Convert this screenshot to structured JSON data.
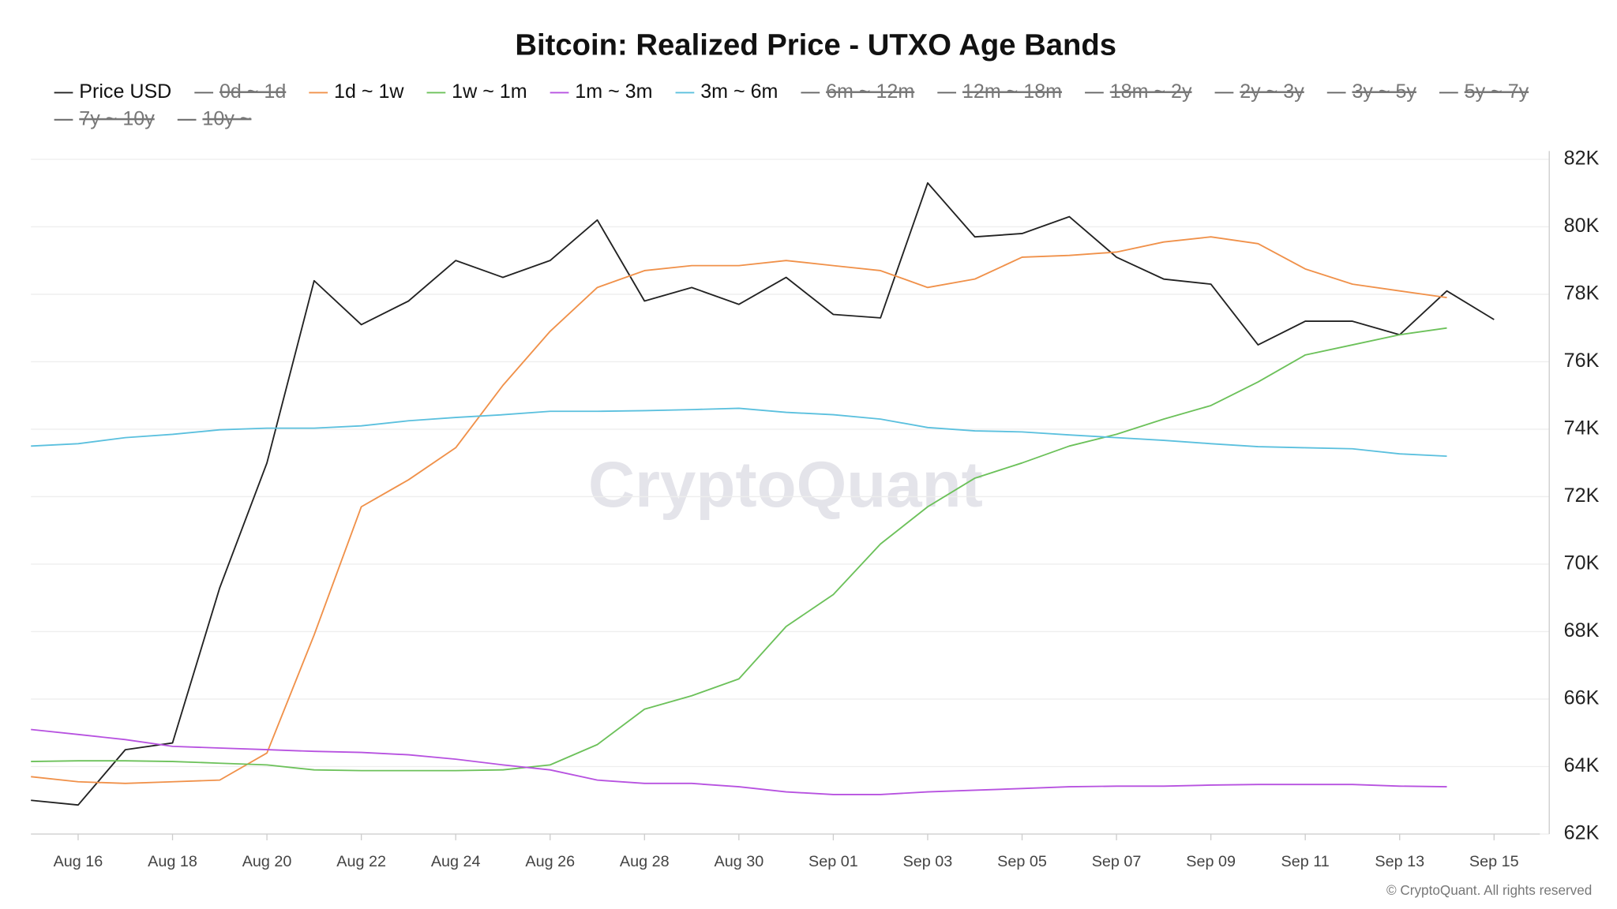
{
  "chart_data": {
    "type": "line",
    "title": "Bitcoin: Realized Price - UTXO Age Bands",
    "watermark": "CryptoQuant",
    "credit": "© CryptoQuant. All rights reserved",
    "categories": [
      null,
      "Aug 16",
      null,
      "Aug 18",
      null,
      "Aug 20",
      null,
      "Aug 22",
      null,
      "Aug 24",
      null,
      "Aug 26",
      null,
      "Aug 28",
      null,
      "Aug 30",
      null,
      "Sep 01",
      null,
      "Sep 03",
      null,
      "Sep 05",
      null,
      "Sep 07",
      null,
      "Sep 09",
      null,
      "Sep 11",
      null,
      "Sep 13",
      null,
      "Sep 15"
    ],
    "ylim": [
      62000,
      82000
    ],
    "yticks": [
      {
        "value": 62000,
        "label": "62K"
      },
      {
        "value": 64000,
        "label": "64K"
      },
      {
        "value": 66000,
        "label": "66K"
      },
      {
        "value": 68000,
        "label": "68K"
      },
      {
        "value": 70000,
        "label": "70K"
      },
      {
        "value": 72000,
        "label": "72K"
      },
      {
        "value": 74000,
        "label": "74K"
      },
      {
        "value": 76000,
        "label": "76K"
      },
      {
        "value": 78000,
        "label": "78K"
      },
      {
        "value": 80000,
        "label": "80K"
      },
      {
        "value": 82000,
        "label": "82K"
      }
    ],
    "grid": true,
    "series": [
      {
        "name": "Price USD",
        "color": "#222222",
        "values": [
          63000,
          62860,
          64500,
          64700,
          69300,
          73000,
          78400,
          77100,
          77800,
          79000,
          78500,
          79000,
          80200,
          77800,
          78200,
          77700,
          78500,
          77400,
          77300,
          81300,
          79700,
          79800,
          80300,
          79100,
          78450,
          78300,
          76500,
          77200,
          77200,
          76800,
          78100,
          77250
        ]
      },
      {
        "name": "0d ~ 1d",
        "color": "#666666",
        "visible": false
      },
      {
        "name": "1d ~ 1w",
        "color": "#f0914a",
        "values": [
          63700,
          63550,
          63500,
          63550,
          63600,
          64400,
          67900,
          71700,
          72500,
          73450,
          75300,
          76900,
          78200,
          78700,
          78850,
          78850,
          79000,
          78850,
          78700,
          78200,
          78450,
          79100,
          79150,
          79250,
          79550,
          79700,
          79500,
          78750,
          78300,
          78100,
          77900,
          null
        ]
      },
      {
        "name": "1w ~ 1m",
        "color": "#6cc15a",
        "values": [
          64150,
          64170,
          64170,
          64150,
          64100,
          64050,
          63900,
          63880,
          63880,
          63880,
          63900,
          64050,
          64650,
          65700,
          66100,
          66600,
          68150,
          69100,
          70600,
          71700,
          72550,
          73000,
          73500,
          73850,
          74300,
          74700,
          75400,
          76200,
          76500,
          76800,
          77000,
          null
        ]
      },
      {
        "name": "1m ~ 3m",
        "color": "#b752e0",
        "values": [
          65100,
          64950,
          64800,
          64600,
          64550,
          64500,
          64450,
          64420,
          64350,
          64220,
          64050,
          63900,
          63600,
          63500,
          63500,
          63400,
          63250,
          63170,
          63170,
          63250,
          63300,
          63350,
          63400,
          63420,
          63420,
          63450,
          63470,
          63470,
          63470,
          63420,
          63400,
          null
        ]
      },
      {
        "name": "3m ~ 6m",
        "color": "#5bc0de",
        "values": [
          73500,
          73570,
          73750,
          73850,
          73980,
          74030,
          74030,
          74100,
          74250,
          74350,
          74430,
          74530,
          74530,
          74550,
          74580,
          74620,
          74500,
          74430,
          74300,
          74050,
          73950,
          73920,
          73830,
          73750,
          73670,
          73570,
          73480,
          73450,
          73420,
          73270,
          73200,
          null
        ]
      },
      {
        "name": "6m ~ 12m",
        "color": "#666666",
        "visible": false
      },
      {
        "name": "12m ~ 18m",
        "color": "#666666",
        "visible": false
      },
      {
        "name": "18m ~ 2y",
        "color": "#666666",
        "visible": false
      },
      {
        "name": "2y ~ 3y",
        "color": "#666666",
        "visible": false
      },
      {
        "name": "3y ~ 5y",
        "color": "#666666",
        "visible": false
      },
      {
        "name": "5y ~ 7y",
        "color": "#666666",
        "visible": false
      },
      {
        "name": "7y ~ 10y",
        "color": "#666666",
        "visible": false
      },
      {
        "name": "10y ~",
        "color": "#666666",
        "visible": false
      }
    ]
  }
}
